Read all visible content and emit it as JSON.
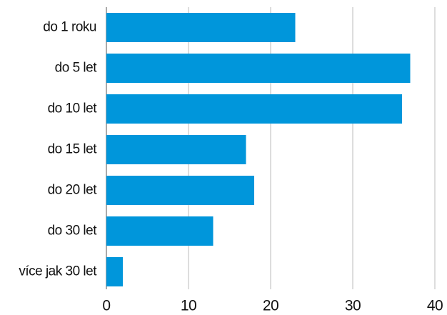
{
  "chart_data": {
    "type": "bar",
    "categories": [
      "do 1 roku",
      "do 5 let",
      "do 10 let",
      "do 15 let",
      "do 20 let",
      "do 30 let",
      "více jak 30 let"
    ],
    "values": [
      23,
      37,
      36,
      17,
      18,
      13,
      2
    ],
    "color": "#0096db",
    "xlim": [
      0,
      40
    ],
    "xticks": [
      0,
      10,
      20,
      30,
      40
    ],
    "grid": true
  }
}
